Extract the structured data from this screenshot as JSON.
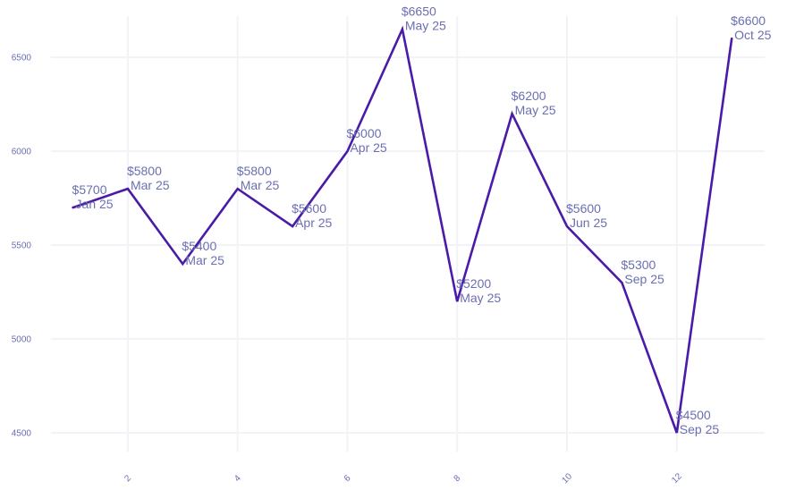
{
  "chart_data": {
    "type": "line",
    "title": "",
    "xlabel": "",
    "ylabel": "",
    "xlim": [
      0.6,
      13.6
    ],
    "ylim": [
      4400,
      6720
    ],
    "x_ticks": [
      2,
      4,
      6,
      8,
      10,
      12
    ],
    "y_ticks": [
      4500,
      5000,
      5500,
      6000,
      6500
    ],
    "grid": true,
    "colors": {
      "line": "#4a1aa8",
      "grid": "#f2f2f7",
      "text": "#6b6fb2"
    },
    "series": [
      {
        "x": [
          1,
          2,
          3,
          4,
          5,
          6,
          7,
          8,
          9,
          10,
          11,
          12,
          13
        ],
        "values": [
          5700,
          5800,
          5400,
          5800,
          5600,
          6000,
          6650,
          5200,
          6200,
          5600,
          5300,
          4500,
          6600
        ],
        "labels": [
          [
            "$5700",
            "Jan 25"
          ],
          [
            "$5800",
            "Mar 25"
          ],
          [
            "$5400",
            "Mar 25"
          ],
          [
            "$5800",
            "Mar 25"
          ],
          [
            "$5600",
            "Apr 25"
          ],
          [
            "$6000",
            "Apr 25"
          ],
          [
            "$6650",
            "May 25"
          ],
          [
            "$5200",
            "May 25"
          ],
          [
            "$6200",
            "May 25"
          ],
          [
            "$5600",
            "Jun 25"
          ],
          [
            "$5300",
            "Sep 25"
          ],
          [
            "$4500",
            "Sep 25"
          ],
          [
            "$6600",
            "Oct 25"
          ]
        ]
      }
    ]
  }
}
